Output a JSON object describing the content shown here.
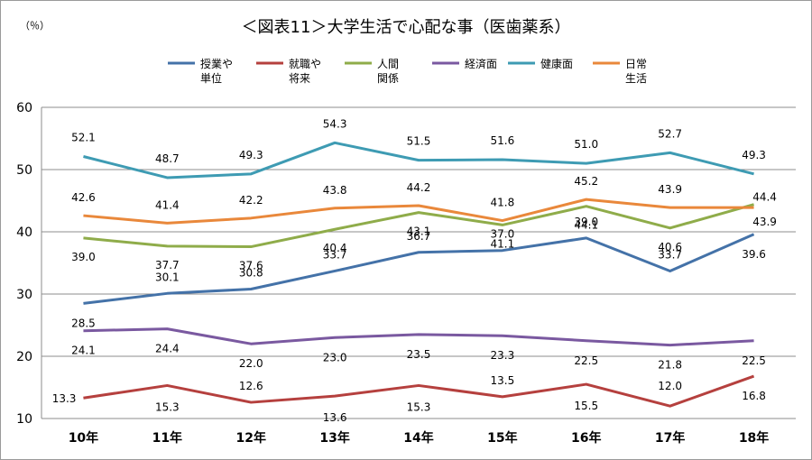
{
  "chart_data": {
    "type": "line",
    "title": "＜図表11＞大学生活で心配な事（医歯薬系）",
    "unit_label": "（％）",
    "categories": [
      "10年",
      "11年",
      "12年",
      "13年",
      "14年",
      "15年",
      "16年",
      "17年",
      "18年"
    ],
    "ylim": [
      10,
      60
    ],
    "yticks": [
      "60",
      "50",
      "40",
      "30",
      "20",
      "10"
    ],
    "grid": true,
    "legend_position": "top",
    "series": [
      {
        "name": "授業や単位",
        "legend": [
          "授業や",
          "単位"
        ],
        "color": "#4472a8",
        "values": [
          28.5,
          30.1,
          30.8,
          33.7,
          36.7,
          37.0,
          39.0,
          33.7,
          39.6
        ],
        "labels": [
          "28.5",
          "30.1",
          "30.8",
          "33.7",
          "36.7",
          "37.0",
          "39.0",
          "33.7",
          "39.6"
        ]
      },
      {
        "name": "就職や将来",
        "legend": [
          "就職や",
          "将来"
        ],
        "color": "#b5403e",
        "values": [
          13.3,
          15.3,
          12.6,
          13.6,
          15.3,
          13.5,
          15.5,
          12.0,
          16.8
        ],
        "labels": [
          "13.3",
          "15.3",
          "12.6",
          "13.6",
          "15.3",
          "13.5",
          "15.5",
          "12.0",
          "16.8"
        ]
      },
      {
        "name": "人間関係",
        "legend": [
          "人間",
          "関係"
        ],
        "color": "#8fac4a",
        "values": [
          39.0,
          37.7,
          37.6,
          40.4,
          43.1,
          41.1,
          44.1,
          40.6,
          44.4
        ],
        "labels": [
          "39.0",
          "37.7",
          "37.6",
          "40.4",
          "43.1",
          "41.1",
          "44.1",
          "40.6",
          "44.4"
        ]
      },
      {
        "name": "経済面",
        "legend": [
          "経済面"
        ],
        "color": "#7a59a0",
        "values": [
          24.1,
          24.4,
          22.0,
          23.0,
          23.5,
          23.3,
          22.5,
          21.8,
          22.5
        ],
        "labels": [
          "24.1",
          "24.4",
          "22.0",
          "23.0",
          "23.5",
          "23.3",
          "22.5",
          "21.8",
          "22.5"
        ]
      },
      {
        "name": "健康面",
        "legend": [
          "健康面"
        ],
        "color": "#3e9bb3",
        "values": [
          52.1,
          48.7,
          49.3,
          54.3,
          51.5,
          51.6,
          51.0,
          52.7,
          49.3
        ],
        "labels": [
          "52.1",
          "48.7",
          "49.3",
          "54.3",
          "51.5",
          "51.6",
          "51.0",
          "52.7",
          "49.3"
        ]
      },
      {
        "name": "日常生活",
        "legend": [
          "日常",
          "生活"
        ],
        "color": "#e9883b",
        "values": [
          42.6,
          41.4,
          42.2,
          43.8,
          44.2,
          41.8,
          45.2,
          43.9,
          43.9
        ],
        "labels": [
          "42.6",
          "41.4",
          "42.2",
          "43.8",
          "44.2",
          "41.8",
          "45.2",
          "43.9",
          "43.9"
        ]
      }
    ]
  }
}
